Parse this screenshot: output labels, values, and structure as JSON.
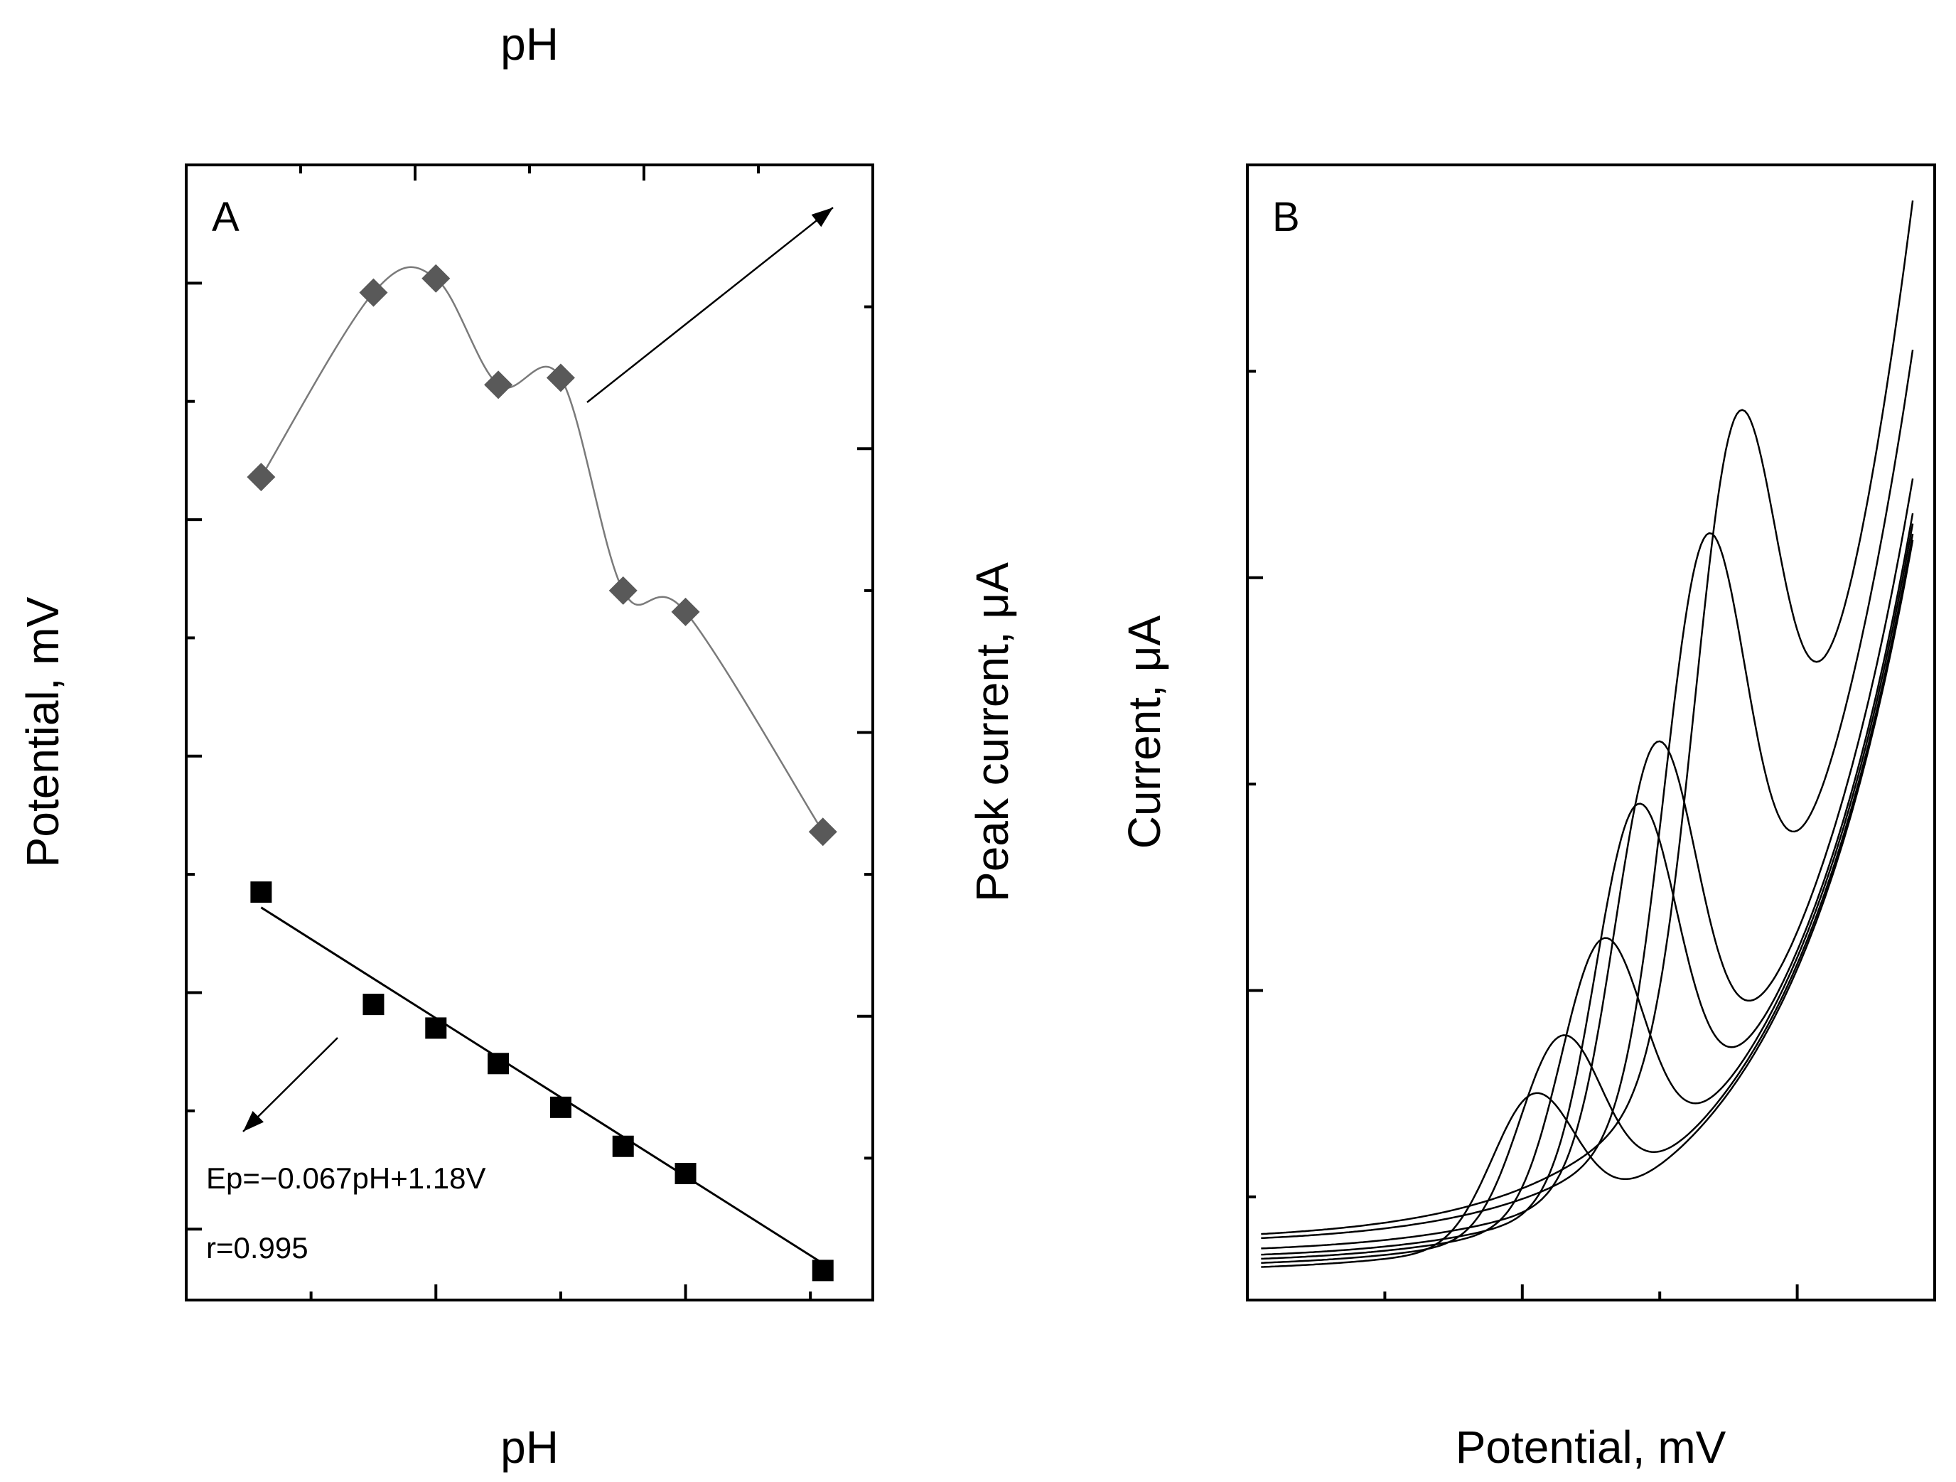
{
  "chart_data": [
    {
      "panel_label": "A",
      "type": "scatter",
      "xlabel": "pH",
      "x2label": "pH",
      "ylabel": "Potential, mV",
      "y2label": "Peak current, μA",
      "xlim": [
        4,
        9.5
      ],
      "x2lim": [
        4,
        10
      ],
      "ylim": [
        0.54,
        1.5
      ],
      "y2lim": [
        -2,
        6
      ],
      "x_ticks": [
        "4",
        "6",
        "8"
      ],
      "x2_ticks": [
        "4",
        "6",
        "8",
        "10"
      ],
      "y_ticks": [
        "0.6",
        "0.8",
        "1.0",
        "1.2",
        "1.4"
      ],
      "y2_ticks": [
        "-2",
        "0",
        "2",
        "4",
        "6"
      ],
      "series": [
        {
          "marker": "square",
          "color": "#000000",
          "axis": "left-bottom",
          "points": [
            {
              "x": 4.6,
              "y": 0.885
            },
            {
              "x": 5.5,
              "y": 0.79
            },
            {
              "x": 6.0,
              "y": 0.77
            },
            {
              "x": 6.5,
              "y": 0.74
            },
            {
              "x": 7.0,
              "y": 0.703
            },
            {
              "x": 7.5,
              "y": 0.67
            },
            {
              "x": 8.0,
              "y": 0.647
            },
            {
              "x": 9.1,
              "y": 0.565
            }
          ],
          "fit": {
            "x0": 4.6,
            "y0": 0.872,
            "x1": 9.1,
            "y1": 0.571
          }
        },
        {
          "marker": "diamond",
          "color": "#595959",
          "axis": "right-top",
          "points": [
            {
              "x": 4.6,
              "y": 3.8
            },
            {
              "x": 5.5,
              "y": 5.1
            },
            {
              "x": 6.0,
              "y": 5.2
            },
            {
              "x": 6.5,
              "y": 4.45
            },
            {
              "x": 7.0,
              "y": 4.5
            },
            {
              "x": 7.5,
              "y": 3.0
            },
            {
              "x": 8.0,
              "y": 2.85
            },
            {
              "x": 9.1,
              "y": 1.3
            }
          ],
          "spline": true
        }
      ],
      "annotations": {
        "equation": "Ep=−0.067pH+1.18V",
        "r_value": "r=0.995"
      }
    },
    {
      "panel_label": "B",
      "type": "line",
      "xlabel": "Potential, mV",
      "ylabel": "Current, μA",
      "xlim": [
        600,
        1100
      ],
      "ylim": [
        2.5,
        8.0
      ],
      "x_ticks": [
        "600",
        "800",
        "1000"
      ],
      "y_ticks": [
        "4",
        "6",
        "8"
      ],
      "curves": [
        {
          "peak_x": 955,
          "peak_y": 6.78,
          "end_y": 7.88
        },
        {
          "peak_x": 933,
          "peak_y": 6.2,
          "end_y": 7.15
        },
        {
          "peak_x": 897,
          "peak_y": 5.2,
          "end_y": 6.52
        },
        {
          "peak_x": 883,
          "peak_y": 4.9,
          "end_y": 6.35
        },
        {
          "peak_x": 858,
          "peak_y": 4.25,
          "end_y": 6.3
        },
        {
          "peak_x": 828,
          "peak_y": 3.78,
          "end_y": 6.25
        },
        {
          "peak_x": 808,
          "peak_y": 3.5,
          "end_y": 6.22
        }
      ]
    }
  ]
}
